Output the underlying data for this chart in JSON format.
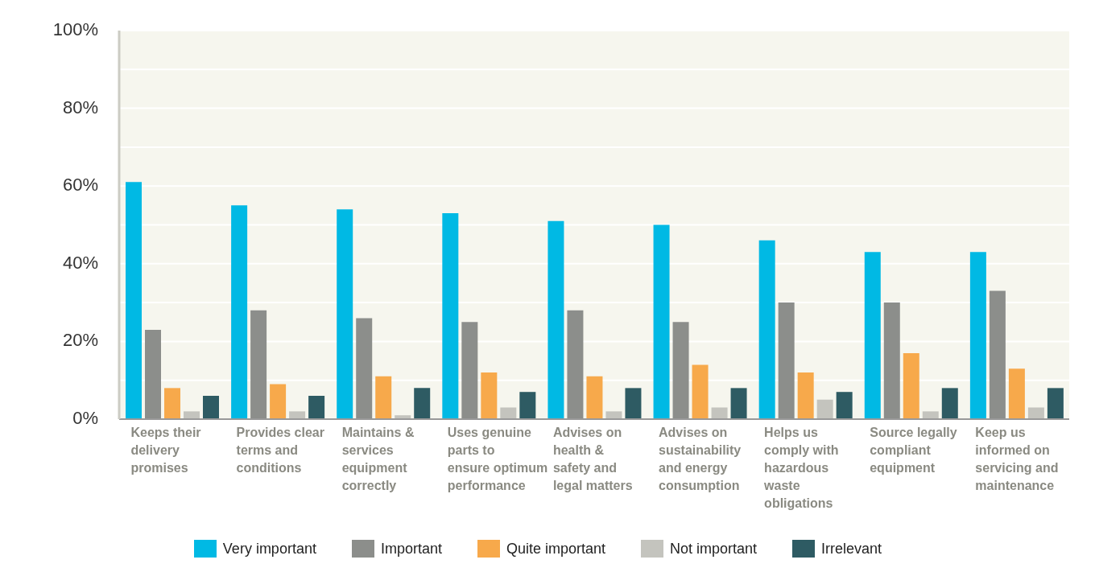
{
  "chart_data": {
    "type": "bar",
    "categories": [
      "Keeps their delivery promises",
      "Provides clear terms and conditions",
      "Maintains & services equipment correctly",
      "Uses genuine parts to ensure optimum performance",
      "Advises on health & safety and legal matters",
      "Advises on sustainability and energy consumption",
      "Helps us comply with hazardous waste obligations",
      "Source legally compliant equipment",
      "Keep us informed on servicing and maintenance"
    ],
    "series": [
      {
        "name": "Very important",
        "color": "#00b9e4",
        "values": [
          61,
          55,
          54,
          53,
          51,
          50,
          46,
          43,
          43
        ]
      },
      {
        "name": "Important",
        "color": "#8c8e8b",
        "values": [
          23,
          28,
          26,
          25,
          28,
          25,
          30,
          30,
          33
        ]
      },
      {
        "name": "Quite important",
        "color": "#f7a94b",
        "values": [
          8,
          9,
          11,
          12,
          11,
          14,
          12,
          17,
          13
        ]
      },
      {
        "name": "Not important",
        "color": "#c4c4be",
        "values": [
          2,
          2,
          1,
          3,
          2,
          3,
          5,
          2,
          3
        ]
      },
      {
        "name": "Irrelevant",
        "color": "#2e5b63",
        "values": [
          6,
          6,
          8,
          7,
          8,
          8,
          7,
          8,
          8
        ]
      }
    ],
    "ylim": [
      0,
      100
    ],
    "yticks": [
      {
        "value": 0,
        "label": "0%"
      },
      {
        "value": 10,
        "label": null
      },
      {
        "value": 20,
        "label": "20%"
      },
      {
        "value": 30,
        "label": null
      },
      {
        "value": 40,
        "label": "40%"
      },
      {
        "value": 50,
        "label": null
      },
      {
        "value": 60,
        "label": "60%"
      },
      {
        "value": 70,
        "label": null
      },
      {
        "value": 80,
        "label": "80%"
      },
      {
        "value": 90,
        "label": null
      },
      {
        "value": 100,
        "label": "100%"
      }
    ],
    "grid": "y",
    "legend": "bottom"
  }
}
